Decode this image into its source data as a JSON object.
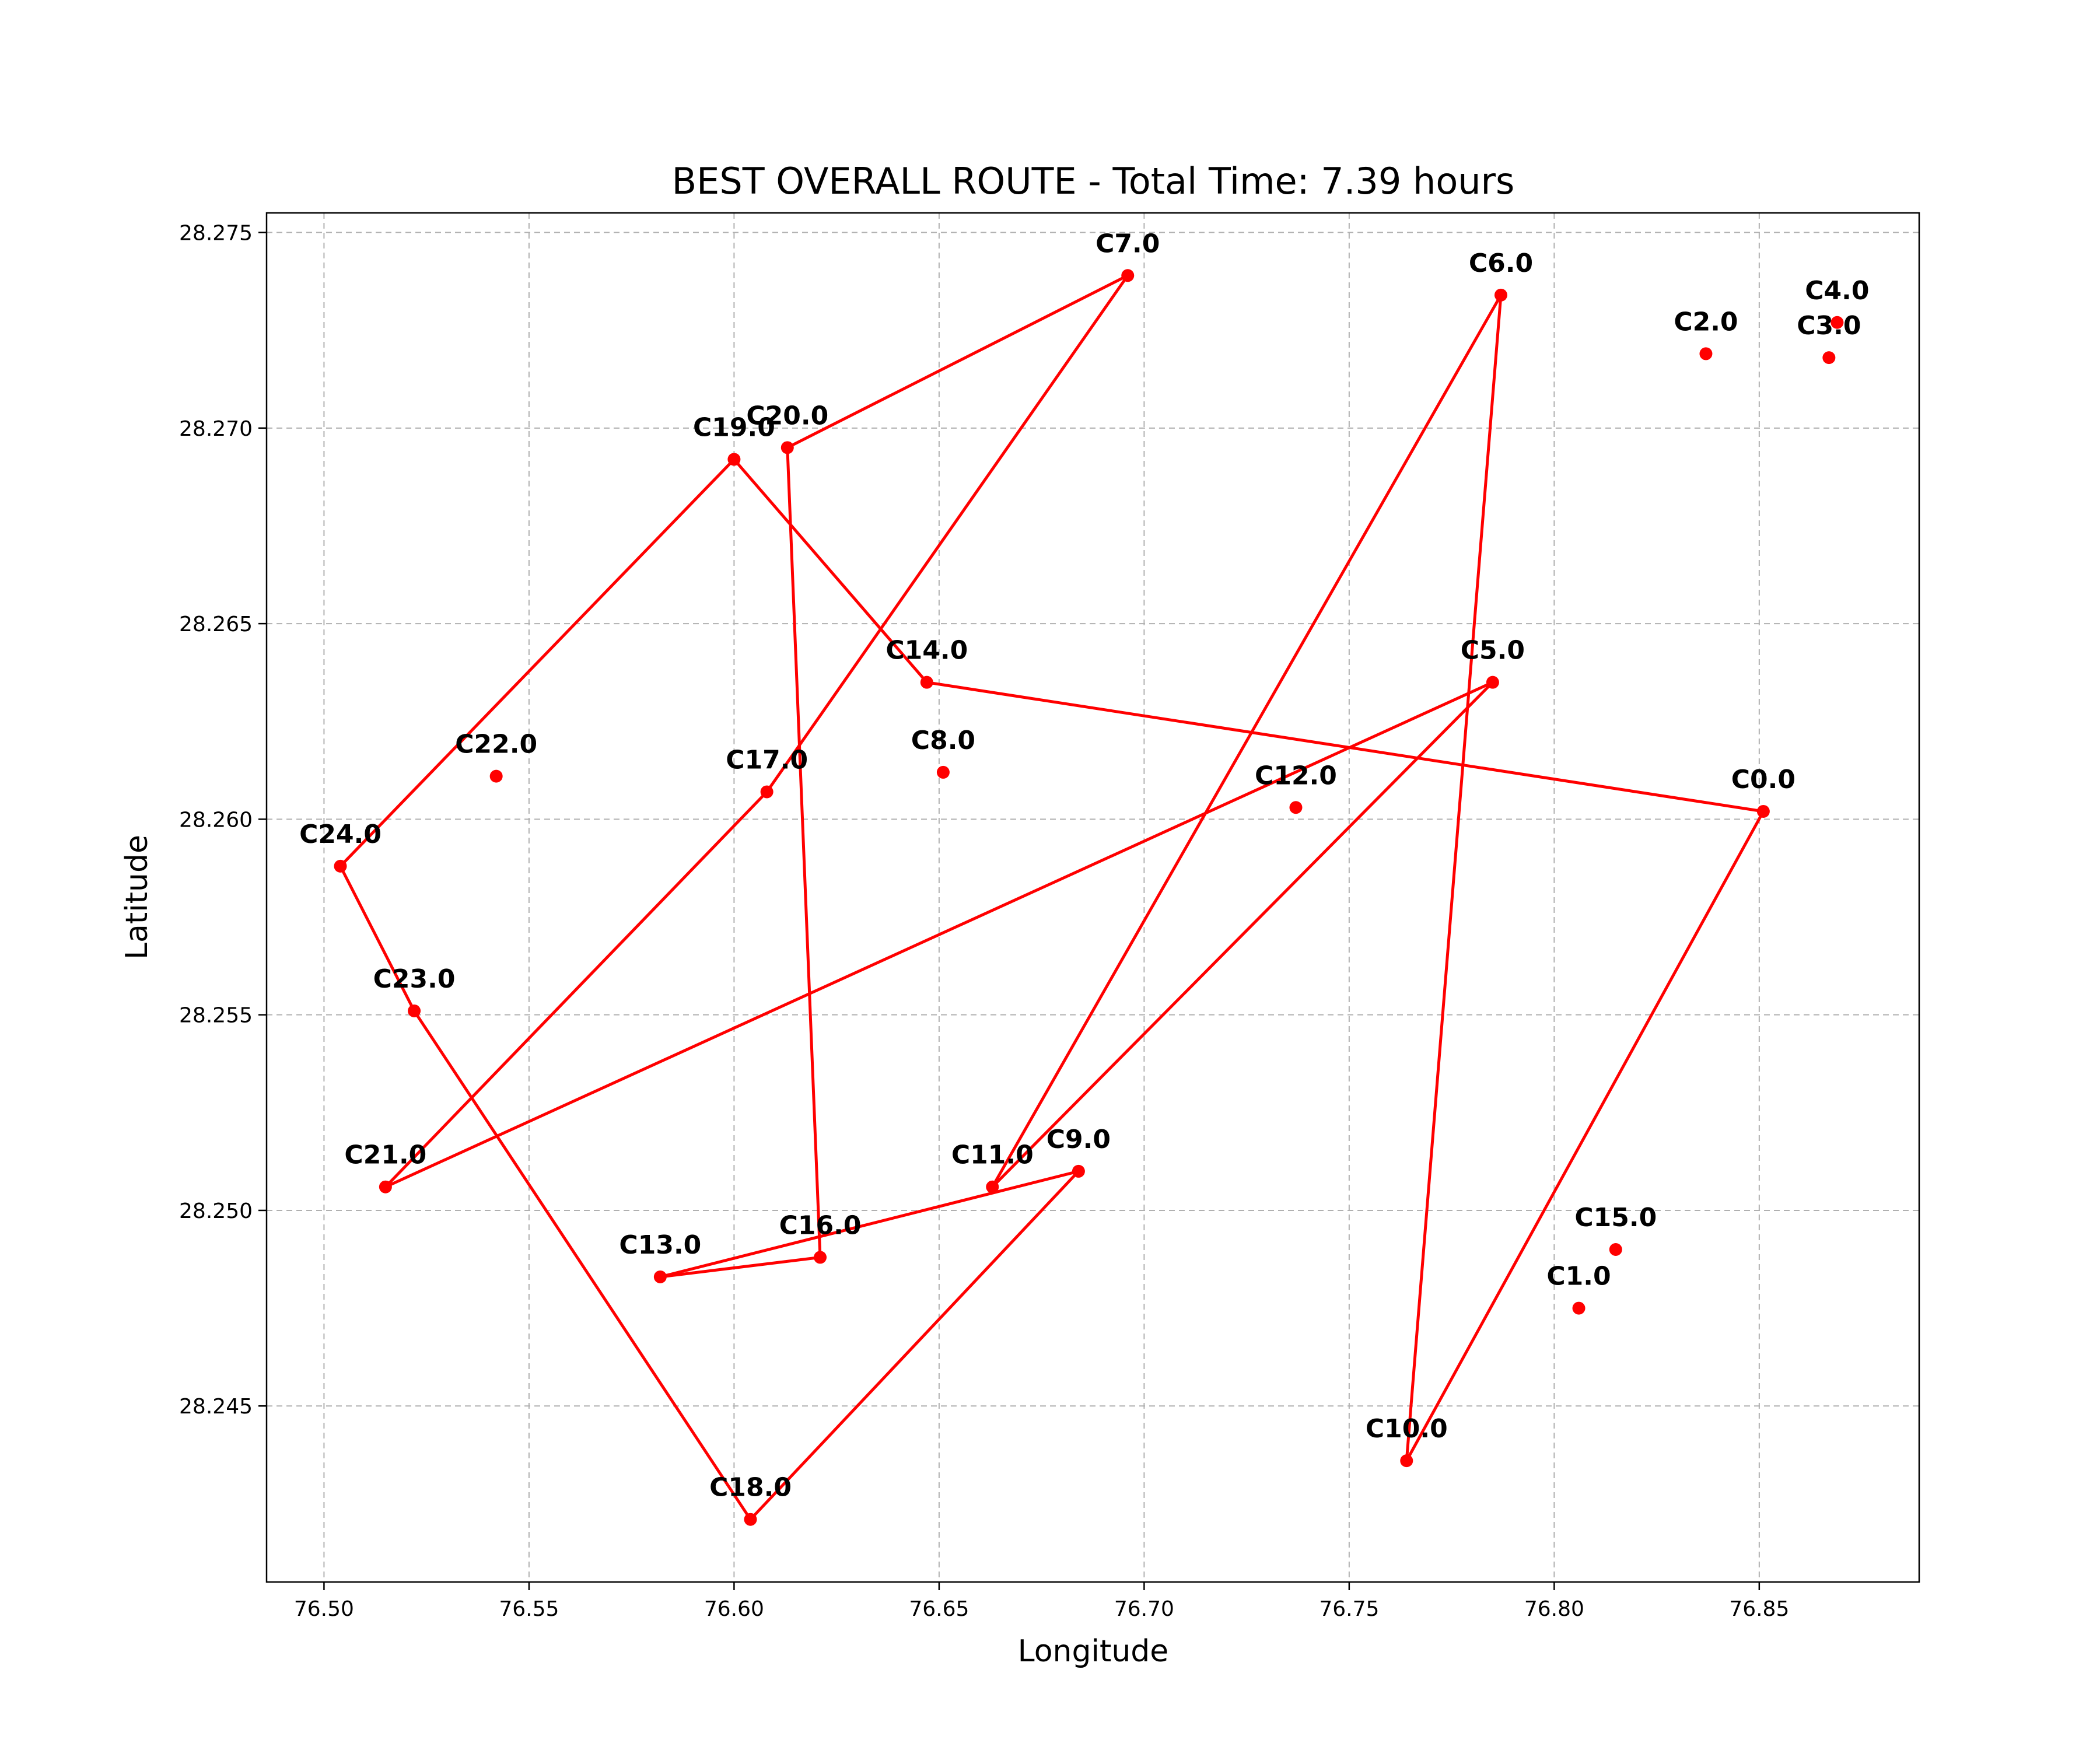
{
  "chart_data": {
    "type": "line",
    "title": "BEST OVERALL ROUTE - Total Time: 7.39 hours",
    "xlabel": "Longitude",
    "ylabel": "Latitude",
    "xlim": [
      76.486,
      76.889
    ],
    "ylim": [
      28.2405,
      28.2755
    ],
    "grid": true,
    "x_ticks": [
      {
        "value": 76.5,
        "label": "76.50"
      },
      {
        "value": 76.55,
        "label": "76.55"
      },
      {
        "value": 76.6,
        "label": "76.60"
      },
      {
        "value": 76.65,
        "label": "76.65"
      },
      {
        "value": 76.7,
        "label": "76.70"
      },
      {
        "value": 76.75,
        "label": "76.75"
      },
      {
        "value": 76.8,
        "label": "76.80"
      },
      {
        "value": 76.85,
        "label": "76.85"
      }
    ],
    "y_ticks": [
      {
        "value": 28.245,
        "label": "28.245"
      },
      {
        "value": 28.25,
        "label": "28.250"
      },
      {
        "value": 28.255,
        "label": "28.255"
      },
      {
        "value": 28.26,
        "label": "28.260"
      },
      {
        "value": 28.265,
        "label": "28.265"
      },
      {
        "value": 28.27,
        "label": "28.270"
      },
      {
        "value": 28.275,
        "label": "28.275"
      }
    ],
    "color": "#ff0000",
    "points": [
      {
        "label": "C0.0",
        "x": 76.851,
        "y": 28.2602
      },
      {
        "label": "C1.0",
        "x": 76.806,
        "y": 28.2475
      },
      {
        "label": "C2.0",
        "x": 76.837,
        "y": 28.2719
      },
      {
        "label": "C3.0",
        "x": 76.867,
        "y": 28.2718
      },
      {
        "label": "C4.0",
        "x": 76.869,
        "y": 28.2727
      },
      {
        "label": "C5.0",
        "x": 76.785,
        "y": 28.2635
      },
      {
        "label": "C6.0",
        "x": 76.787,
        "y": 28.2734
      },
      {
        "label": "C7.0",
        "x": 76.696,
        "y": 28.2739
      },
      {
        "label": "C8.0",
        "x": 76.651,
        "y": 28.2612
      },
      {
        "label": "C9.0",
        "x": 76.684,
        "y": 28.251
      },
      {
        "label": "C10.0",
        "x": 76.764,
        "y": 28.2436
      },
      {
        "label": "C11.0",
        "x": 76.663,
        "y": 28.2506
      },
      {
        "label": "C12.0",
        "x": 76.737,
        "y": 28.2603
      },
      {
        "label": "C13.0",
        "x": 76.582,
        "y": 28.2483
      },
      {
        "label": "C14.0",
        "x": 76.647,
        "y": 28.2635
      },
      {
        "label": "C15.0",
        "x": 76.815,
        "y": 28.249
      },
      {
        "label": "C16.0",
        "x": 76.621,
        "y": 28.2488
      },
      {
        "label": "C17.0",
        "x": 76.608,
        "y": 28.2607
      },
      {
        "label": "C18.0",
        "x": 76.604,
        "y": 28.2421
      },
      {
        "label": "C19.0",
        "x": 76.6,
        "y": 28.2692
      },
      {
        "label": "C20.0",
        "x": 76.613,
        "y": 28.2695
      },
      {
        "label": "C21.0",
        "x": 76.515,
        "y": 28.2506
      },
      {
        "label": "C22.0",
        "x": 76.542,
        "y": 28.2611
      },
      {
        "label": "C23.0",
        "x": 76.522,
        "y": 28.2551
      },
      {
        "label": "C24.0",
        "x": 76.504,
        "y": 28.2588
      }
    ],
    "route": [
      0,
      14,
      19,
      24,
      23,
      18,
      9,
      13,
      16,
      20,
      7,
      17,
      21,
      5,
      11,
      6,
      10,
      0
    ]
  },
  "route_segment_2": [
    0,
    14
  ],
  "note_route_order": [
    22,
    15
  ]
}
